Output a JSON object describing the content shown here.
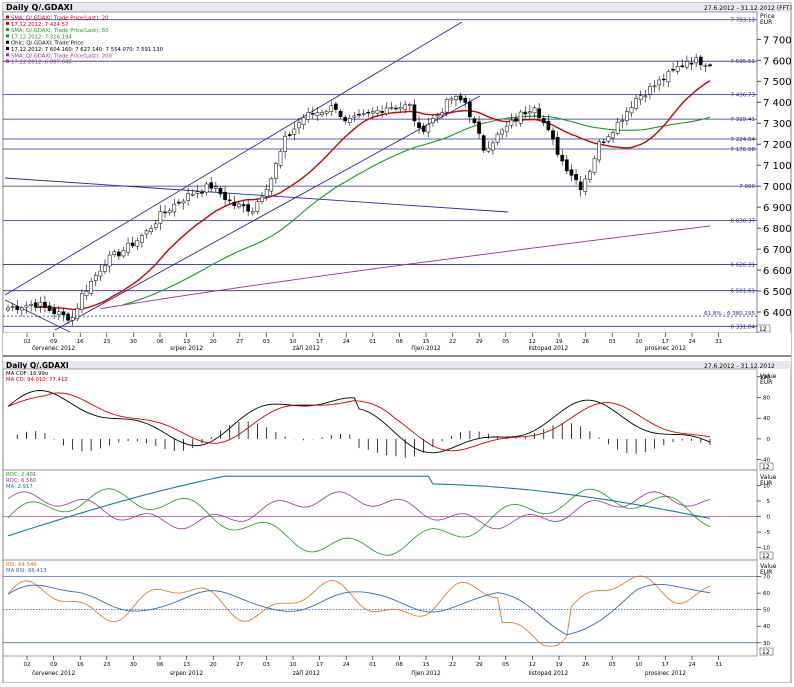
{
  "main": {
    "title": "Daily Q/.GDAXI",
    "daterange": "27.6.2012 - 31.12.2012 (FFT)",
    "axis_unit1": "Price",
    "axis_unit2": "EUR",
    "legend": [
      {
        "text": "SMA; Q/.GDAXI; Trade Price(Last); 20",
        "color": "#d00000"
      },
      {
        "text": "17.12.2012: 7 424.57",
        "color": "#d00000"
      },
      {
        "text": "SMA; Q/.GDAXI; Trade Price(Last); 50",
        "color": "#1a9a1a"
      },
      {
        "text": "17.12.2012: 7 316.194",
        "color": "#1a9a1a"
      },
      {
        "text": "Ohlc; Q/.GDAXI; Trade Price",
        "color": "#000000"
      },
      {
        "text": "17.12.2012: 7 604.160: 7 627.140: 7 554.070: 7 591.130",
        "color": "#000000"
      },
      {
        "text": "SMA; Q/.GDAXI; Trade Price(Last); 200",
        "color": "#993399"
      },
      {
        "text": "17.12.2012: 6 807.646",
        "color": "#993399"
      }
    ],
    "hlines": [
      {
        "label": "7 793.13",
        "value": 7793.13
      },
      {
        "label": "7 595.51",
        "value": 7595.51
      },
      {
        "label": "7 436.73",
        "value": 7436.73
      },
      {
        "label": "7 319.41",
        "value": 7319.41
      },
      {
        "label": "7 224.84",
        "value": 7224.84
      },
      {
        "label": "7 176.98",
        "value": 7176.98
      },
      {
        "label": "7 000",
        "value": 7000
      },
      {
        "label": "6 836.37",
        "value": 6836.37
      },
      {
        "label": "6 626.31",
        "value": 6626.31
      },
      {
        "label": "6 501.61",
        "value": 6501.61
      },
      {
        "label": "6 331.84",
        "value": 6331.84
      }
    ],
    "fib_label": "61.8% : 6 380.295",
    "fib_value": 6380.295,
    "yticks": [
      {
        "label": "7 700",
        "value": 7700
      },
      {
        "label": "7 600",
        "value": 7600
      },
      {
        "label": "7 500",
        "value": 7500
      },
      {
        "label": "7 400",
        "value": 7400
      },
      {
        "label": "7 300",
        "value": 7300
      },
      {
        "label": "7 200",
        "value": 7200
      },
      {
        "label": "7 100",
        "value": 7100
      },
      {
        "label": "7 000",
        "value": 7000
      },
      {
        "label": "6 900",
        "value": 6900
      },
      {
        "label": "6 800",
        "value": 6800
      },
      {
        "label": "6 700",
        "value": 6700
      },
      {
        "label": "6 600",
        "value": 6600
      },
      {
        "label": "6 500",
        "value": 6500
      },
      {
        "label": "6 400",
        "value": 6400
      }
    ],
    "scale_box": "12"
  },
  "osc1": {
    "title": "Daily Q/.GDAXI",
    "daterange": "27.6.2012 - 31.12.2012",
    "legend": [
      {
        "text": "MA CDF: 16.99o",
        "color": "#000000"
      },
      {
        "text": "MA CD: 94.010: 77.412",
        "color": "#d00000"
      }
    ],
    "unit1": "Value",
    "unit2": "EUR",
    "yticks": [
      {
        "label": "120",
        "value": 120
      },
      {
        "label": "80",
        "value": 80
      },
      {
        "label": "40",
        "value": 40
      },
      {
        "label": "0",
        "value": 0
      },
      {
        "label": "-40",
        "value": -40
      }
    ],
    "scale_box": "12"
  },
  "osc2": {
    "legend": [
      {
        "text": "ROC: 2.401",
        "color": "#1a9a1a"
      },
      {
        "text": "ROC: 6.560",
        "color": "#993399"
      },
      {
        "text": "MA: 2.917",
        "color": "#1a7a9a"
      }
    ],
    "unit1": "Value",
    "unit2": "EUR",
    "yticks": [
      {
        "label": "10",
        "value": 10
      },
      {
        "label": "5",
        "value": 5
      },
      {
        "label": "0",
        "value": 0
      },
      {
        "label": "-5",
        "value": -5
      },
      {
        "label": "-10",
        "value": -10
      }
    ],
    "scale_box": "12"
  },
  "osc3": {
    "legend": [
      {
        "text": "RSI: 64.546",
        "color": "#e07020"
      },
      {
        "text": "MA RSI: 66.413",
        "color": "#3a6aaa"
      }
    ],
    "unit1": "Value",
    "unit2": "EUR",
    "yticks": [
      {
        "label": "70",
        "value": 70
      },
      {
        "label": "60",
        "value": 60
      },
      {
        "label": "50",
        "value": 50
      },
      {
        "label": "40",
        "value": 40
      },
      {
        "label": "30",
        "value": 30
      }
    ],
    "scale_box": "12"
  },
  "xaxis": {
    "days": [
      "02",
      "09",
      "16",
      "23",
      "30",
      "06",
      "13",
      "20",
      "27",
      "03",
      "10",
      "17",
      "24",
      "01",
      "08",
      "15",
      "22",
      "29",
      "05",
      "12",
      "19",
      "26",
      "03",
      "10",
      "17",
      "24",
      "31"
    ],
    "months": [
      {
        "label": "červenec 2012",
        "day_index": 1
      },
      {
        "label": "srpen 2012",
        "day_index": 6
      },
      {
        "label": "září 2012",
        "day_index": 10.5
      },
      {
        "label": "říjen 2012",
        "day_index": 15
      },
      {
        "label": "listopad 2012",
        "day_index": 19.6
      },
      {
        "label": "prosinec 2012",
        "day_index": 24
      }
    ]
  },
  "chart_data": {
    "type": "candlestick",
    "title": "Daily Q/.GDAXI",
    "ylabel": "Price EUR",
    "ylim": [
      6331.84,
      7793.13
    ],
    "x_start": "2012-06-27",
    "x_end": "2012-12-31",
    "keypoints": [
      [
        0,
        6420
      ],
      [
        6,
        6440
      ],
      [
        12,
        6380
      ],
      [
        14,
        6375
      ],
      [
        16,
        6480
      ],
      [
        21,
        6640
      ],
      [
        26,
        6710
      ],
      [
        30,
        6780
      ],
      [
        33,
        6860
      ],
      [
        37,
        6930
      ],
      [
        41,
        6980
      ],
      [
        44,
        7000
      ],
      [
        49,
        6910
      ],
      [
        53,
        6890
      ],
      [
        57,
        7040
      ],
      [
        60,
        7220
      ],
      [
        64,
        7330
      ],
      [
        68,
        7360
      ],
      [
        71,
        7380
      ],
      [
        73,
        7300
      ],
      [
        78,
        7340
      ],
      [
        82,
        7380
      ],
      [
        87,
        7380
      ],
      [
        89,
        7260
      ],
      [
        93,
        7340
      ],
      [
        96,
        7420
      ],
      [
        99,
        7400
      ],
      [
        103,
        7180
      ],
      [
        107,
        7260
      ],
      [
        111,
        7340
      ],
      [
        114,
        7390
      ],
      [
        116,
        7300
      ],
      [
        120,
        7120
      ],
      [
        124,
        7000
      ],
      [
        126,
        7080
      ],
      [
        128,
        7200
      ],
      [
        132,
        7300
      ],
      [
        136,
        7420
      ],
      [
        140,
        7480
      ],
      [
        143,
        7530
      ],
      [
        147,
        7600
      ],
      [
        152,
        7591
      ]
    ],
    "series": [
      {
        "name": "SMA 20",
        "value_last": 7424.57
      },
      {
        "name": "SMA 50",
        "value_last": 7316.194
      },
      {
        "name": "SMA 200",
        "value_last": 6807.646
      }
    ],
    "last_ohlc": [
      7604.16,
      7627.14,
      7554.07,
      7591.13
    ]
  }
}
